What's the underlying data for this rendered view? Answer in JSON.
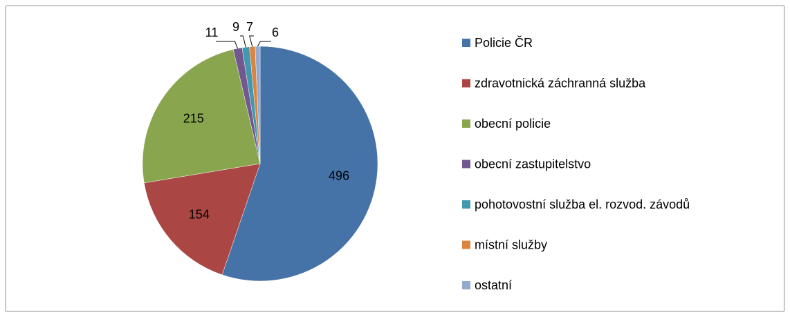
{
  "chart_data": {
    "type": "pie",
    "categories": [
      "Policie ČR",
      "zdravotnická záchranná služba",
      "obecní policie",
      "obecní zastupitelstvo",
      "pohotovostní služba el. rozvod. závodů",
      "místní služby",
      "ostatní"
    ],
    "values": [
      496,
      154,
      215,
      11,
      9,
      7,
      6
    ],
    "colors": [
      "#4572a7",
      "#aa4643",
      "#89a54e",
      "#71588f",
      "#4198af",
      "#db843d",
      "#93a9cf"
    ],
    "legend": "right"
  }
}
